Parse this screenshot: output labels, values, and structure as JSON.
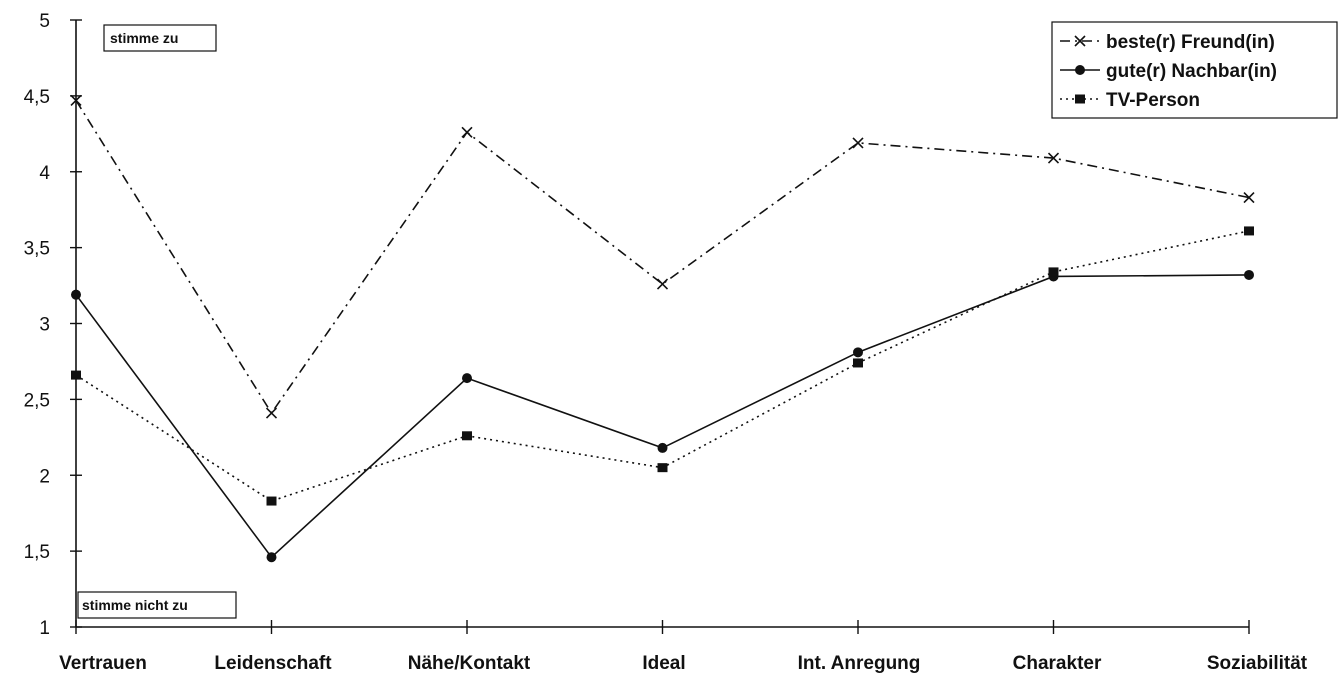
{
  "chart_data": {
    "type": "line",
    "categories": [
      "Vertrauen",
      "Leidenschaft",
      "Nähe/Kontakt",
      "Ideal",
      "Int. Anregung",
      "Charakter",
      "Soziabilität"
    ],
    "series": [
      {
        "name": "beste(r) Freund(in)",
        "values": [
          4.47,
          2.41,
          4.26,
          3.26,
          4.19,
          4.09,
          3.83
        ],
        "line_style": "dash-dot",
        "marker": "x",
        "color": "#111111"
      },
      {
        "name": "gute(r) Nachbar(in)",
        "values": [
          3.19,
          1.46,
          2.64,
          2.18,
          2.81,
          3.31,
          3.32
        ],
        "line_style": "solid",
        "marker": "circle",
        "color": "#111111"
      },
      {
        "name": "TV-Person",
        "values": [
          2.66,
          1.83,
          2.26,
          2.05,
          2.74,
          3.34,
          3.61
        ],
        "line_style": "dotted",
        "marker": "square",
        "color": "#111111"
      }
    ],
    "ylim": [
      1,
      5
    ],
    "yticks": [
      "1",
      "1,5",
      "2",
      "2,5",
      "3",
      "3,5",
      "4",
      "4,5",
      "5"
    ],
    "annotations": {
      "top": "stimme zu",
      "bottom": "stimme nicht zu"
    },
    "legend_position": "top-right",
    "grid": false
  }
}
